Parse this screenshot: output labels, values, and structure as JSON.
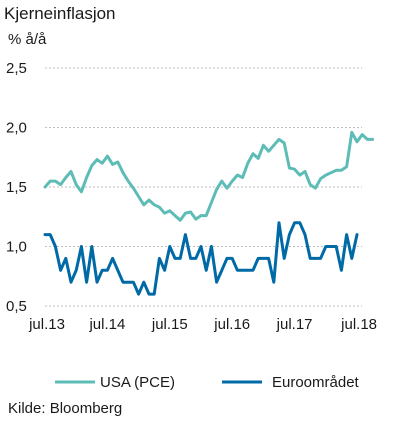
{
  "chart_data": {
    "type": "line",
    "title": "Kjerneinflasjon",
    "ylabel": "% å/å",
    "source": "Kilde: Bloomberg",
    "ylim": [
      0.5,
      2.5
    ],
    "yticks": [
      "0,5",
      "1,0",
      "1,5",
      "2,0",
      "2,5"
    ],
    "ytick_values": [
      0.5,
      1.0,
      1.5,
      2.0,
      2.5
    ],
    "xticks": [
      "jul.13",
      "jul.14",
      "jul.15",
      "jul.16",
      "jul.17",
      "jul.18"
    ],
    "x_start": "2013-07",
    "x_end": "2018-08",
    "grid": "horizontal",
    "legend_position": "bottom",
    "series": [
      {
        "name": "USA (PCE)",
        "color": "#5dbcb6",
        "values": [
          1.5,
          1.55,
          1.55,
          1.52,
          1.58,
          1.63,
          1.52,
          1.46,
          1.58,
          1.68,
          1.73,
          1.7,
          1.76,
          1.69,
          1.71,
          1.62,
          1.55,
          1.49,
          1.42,
          1.35,
          1.39,
          1.35,
          1.33,
          1.28,
          1.3,
          1.26,
          1.22,
          1.28,
          1.29,
          1.23,
          1.26,
          1.26,
          1.37,
          1.48,
          1.55,
          1.49,
          1.55,
          1.6,
          1.58,
          1.7,
          1.78,
          1.74,
          1.85,
          1.8,
          1.85,
          1.9,
          1.87,
          1.66,
          1.65,
          1.6,
          1.63,
          1.52,
          1.49,
          1.57,
          1.6,
          1.62,
          1.64,
          1.64,
          1.67,
          1.96,
          1.88,
          1.94,
          1.9,
          1.9
        ]
      },
      {
        "name": "Euroområdet",
        "color": "#006aa6",
        "values": [
          1.1,
          1.1,
          1.0,
          0.8,
          0.9,
          0.7,
          0.8,
          1.0,
          0.7,
          1.0,
          0.7,
          0.8,
          0.8,
          0.9,
          0.8,
          0.7,
          0.7,
          0.7,
          0.6,
          0.7,
          0.6,
          0.6,
          0.9,
          0.8,
          1.0,
          0.9,
          0.9,
          1.1,
          0.9,
          0.9,
          1.0,
          0.8,
          1.0,
          0.7,
          0.8,
          0.9,
          0.9,
          0.8,
          0.8,
          0.8,
          0.8,
          0.9,
          0.9,
          0.9,
          0.7,
          1.2,
          0.9,
          1.1,
          1.2,
          1.2,
          1.1,
          0.9,
          0.9,
          0.9,
          1.0,
          1.0,
          1.0,
          0.8,
          1.1,
          0.9,
          1.1
        ]
      }
    ]
  }
}
